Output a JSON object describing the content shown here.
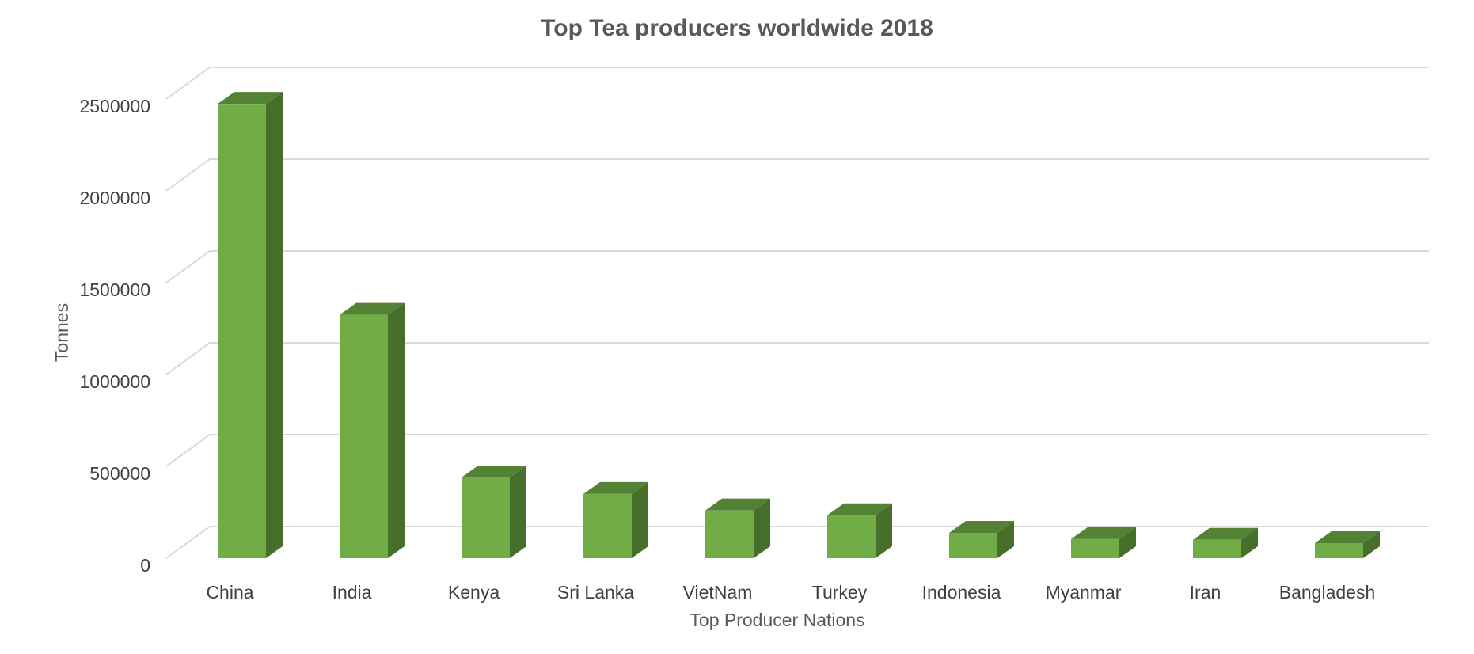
{
  "chart_data": {
    "type": "bar",
    "title": "Top Tea producers worldwide 2018",
    "xlabel": "Top Producer Nations",
    "ylabel": "Tonnes",
    "categories": [
      "China",
      "India",
      "Kenya",
      "Sri Lanka",
      "VietNam",
      "Turkey",
      "Indonesia",
      "Myanmar",
      "Iran",
      "Bangladesh"
    ],
    "values": [
      2473443,
      1325050,
      439857,
      349699,
      260000,
      234000,
      138000,
      104000,
      100000,
      82000
    ],
    "ylim": [
      0,
      2500000
    ],
    "yticks": [
      0,
      500000,
      1000000,
      1500000,
      2000000,
      2500000
    ],
    "ytick_labels": [
      "0",
      "500000",
      "1000000",
      "1500000",
      "2000000",
      "2500000"
    ],
    "grid": true,
    "legend": "none",
    "style": "3d-column",
    "colors": {
      "bar_front": "#70ad47",
      "bar_side": "#476f2b",
      "bar_top": "#548235",
      "grid": "#d9d9d9",
      "title": "#595959",
      "text": "#404040"
    }
  }
}
